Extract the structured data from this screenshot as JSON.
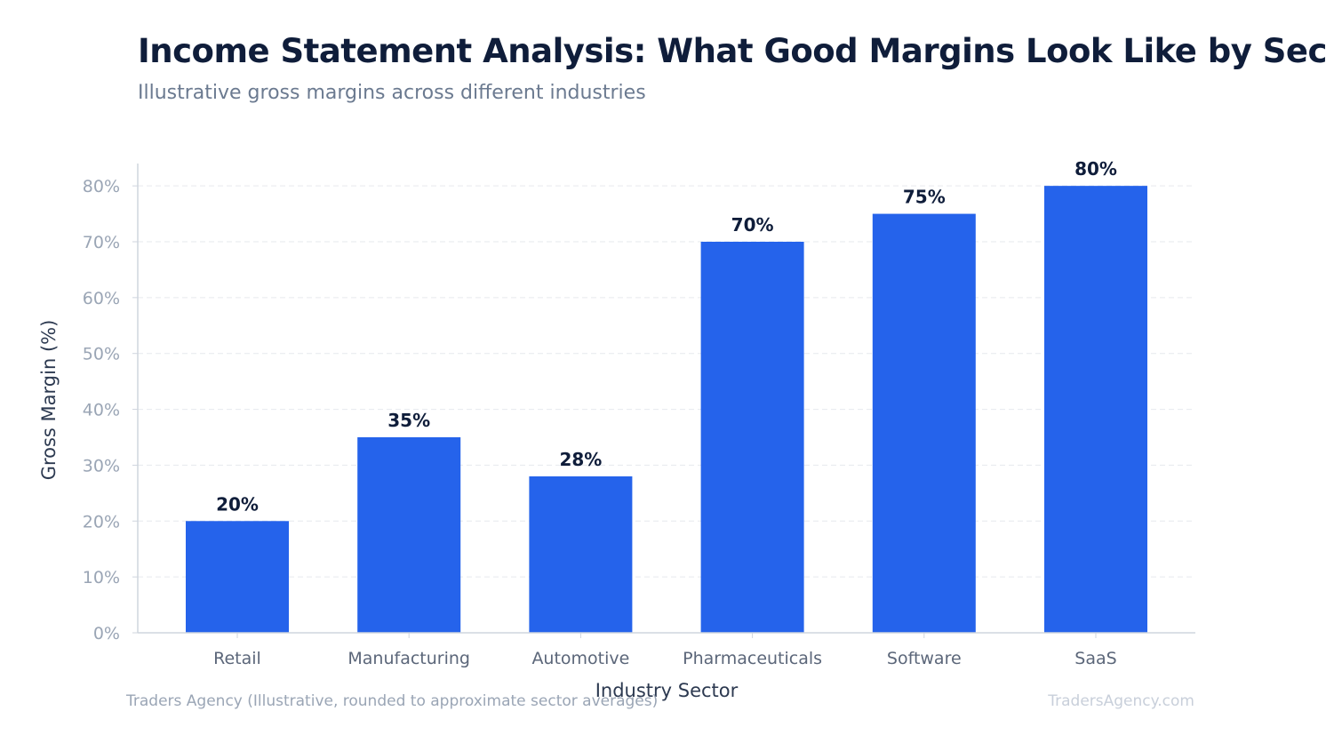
{
  "header": {
    "title": "Income Statement Analysis: What Good Margins Look Like by Sector",
    "subtitle": "Illustrative gross margins across different industries"
  },
  "footer": {
    "source": "Traders Agency (Illustrative, rounded to approximate sector averages)",
    "brand": "TradersAgency.com"
  },
  "colors": {
    "bar": "#2563eb",
    "grid": "#e6e9ee",
    "axis": "#cfd5de"
  },
  "chart_data": {
    "type": "bar",
    "title": "Income Statement Analysis: What Good Margins Look Like by Sector",
    "subtitle": "Illustrative gross margins across different industries",
    "xlabel": "Industry Sector",
    "ylabel": "Gross Margin (%)",
    "categories": [
      "Retail",
      "Manufacturing",
      "Automotive",
      "Pharmaceuticals",
      "Software",
      "SaaS"
    ],
    "values": [
      20,
      35,
      28,
      70,
      75,
      80
    ],
    "value_labels": [
      "20%",
      "35%",
      "28%",
      "70%",
      "75%",
      "80%"
    ],
    "ylim": [
      0,
      84
    ],
    "yticks": [
      0,
      10,
      20,
      30,
      40,
      50,
      60,
      70,
      80
    ],
    "ytick_labels": [
      "0%",
      "10%",
      "20%",
      "30%",
      "40%",
      "50%",
      "60%",
      "70%",
      "80%"
    ],
    "grid": true,
    "legend": "none"
  }
}
